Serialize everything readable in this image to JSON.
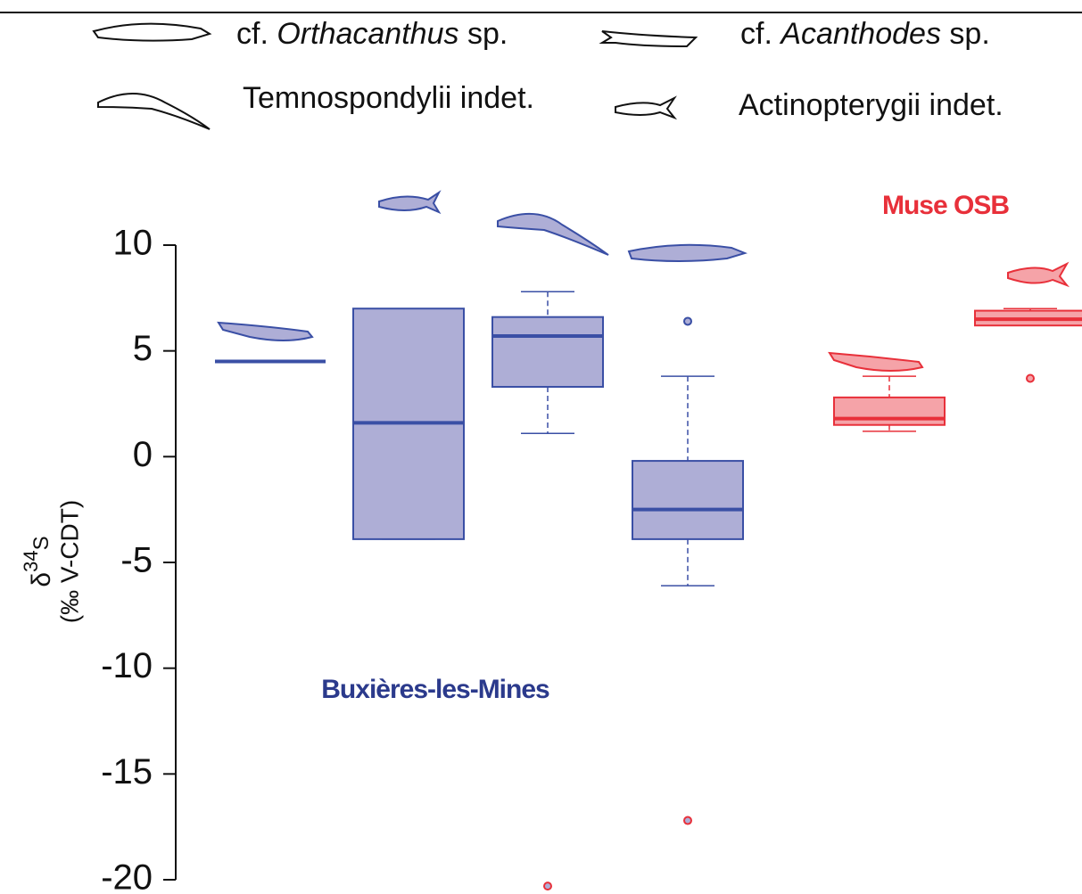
{
  "chart_data": {
    "type": "box",
    "legend": [
      {
        "prefix": "cf.",
        "italic": "Orthacanthus",
        "suffix": "sp."
      },
      {
        "prefix": "cf.",
        "italic": "Acanthodes",
        "suffix": "sp."
      },
      {
        "text": "Temnospondylii indet."
      },
      {
        "text": "Actinopterygii indet."
      }
    ],
    "y_label": {
      "symbol": "δ",
      "sup": "34",
      "element": "S",
      "unit": "(‰ V-CDT)"
    },
    "ylim": [
      -20,
      10
    ],
    "yticks": [
      -20,
      -15,
      -10,
      -5,
      0,
      5,
      10
    ],
    "annotations": [
      {
        "text": "Muse OSB",
        "color": "#e8303a"
      },
      {
        "text": "Buxières-les-Mines",
        "color": "#2b3a8c"
      }
    ],
    "boxes": [
      {
        "color": "#3a4fa5",
        "fill": "#aeaed6",
        "min": 4.5,
        "q1": 4.5,
        "median": 4.5,
        "q3": 4.5,
        "max": 4.5,
        "outliers": []
      },
      {
        "color": "#3a4fa5",
        "fill": "#aeaed6",
        "min": -3.9,
        "q1": -3.9,
        "median": 1.6,
        "q3": 7.0,
        "max": 7.0,
        "outliers": []
      },
      {
        "color": "#3a4fa5",
        "fill": "#aeaed6",
        "min": 1.1,
        "q1": 3.3,
        "median": 5.7,
        "q3": 6.6,
        "max": 7.8,
        "outliers": [
          {
            "value": -20.3,
            "color": "#e8303a"
          }
        ]
      },
      {
        "color": "#3a4fa5",
        "fill": "#aeaed6",
        "min": -6.1,
        "q1": -3.9,
        "median": -2.5,
        "q3": -0.2,
        "max": 3.8,
        "outliers": [
          {
            "value": 6.4,
            "color": "#3a4fa5"
          },
          {
            "value": -17.2,
            "color": "#e8303a"
          }
        ]
      },
      {
        "color": "#e8303a",
        "fill": "#f5a3a8",
        "min": 1.2,
        "q1": 1.5,
        "median": 1.8,
        "q3": 2.8,
        "max": 3.8,
        "outliers": []
      },
      {
        "color": "#e8303a",
        "fill": "#f5a3a8",
        "min": 6.2,
        "q1": 6.2,
        "median": 6.5,
        "q3": 6.9,
        "max": 7.0,
        "outliers": [
          {
            "value": 3.7,
            "color": "#e8303a"
          }
        ]
      }
    ]
  }
}
